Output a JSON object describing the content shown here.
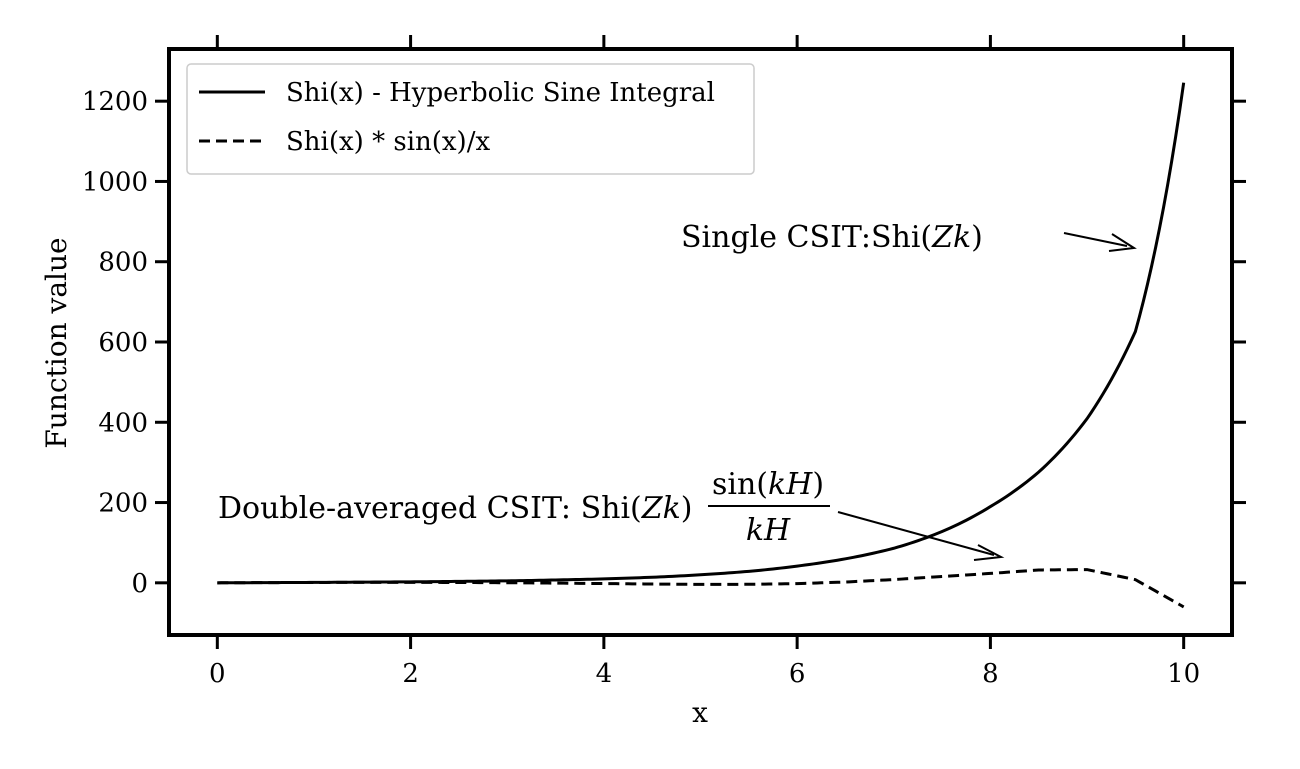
{
  "chart_data": {
    "type": "line",
    "title": "",
    "xlabel": "x",
    "ylabel": "Function value",
    "xlim": [
      -0.5,
      10.5
    ],
    "ylim": [
      -130,
      1330
    ],
    "xticks": [
      0,
      2,
      4,
      6,
      8,
      10
    ],
    "yticks": [
      0,
      200,
      400,
      600,
      800,
      1000,
      1200
    ],
    "grid": false,
    "legend_position": "top-left",
    "x": [
      0,
      0.5,
      1,
      1.5,
      2,
      2.5,
      3,
      3.5,
      4,
      4.5,
      5,
      5.5,
      6,
      6.5,
      7,
      7.5,
      8,
      8.5,
      9,
      9.5,
      10
    ],
    "series": [
      {
        "name": "Shi(x) - Hyperbolic Sine Integral",
        "style": "solid",
        "color": "#000000",
        "values": [
          0,
          0.507,
          1.057,
          1.727,
          2.502,
          3.61,
          4.97,
          7.1,
          9.81,
          13.9,
          20.1,
          28.6,
          41.7,
          59.8,
          86.1,
          128,
          190,
          276,
          409,
          626,
          1246
        ]
      },
      {
        "name": "Shi(x) * sin(x)/x",
        "style": "dashed",
        "color": "#000000",
        "values": [
          0,
          0.49,
          0.89,
          1.15,
          1.14,
          0.86,
          0.23,
          -0.71,
          -1.86,
          -3.0,
          -3.85,
          -3.7,
          -1.94,
          1.98,
          8.1,
          15.8,
          23.4,
          32.0,
          33.0,
          8.0,
          -60
        ]
      }
    ],
    "annotations": [
      {
        "text_prefix": "Single CSIT:Shi(",
        "text_math": "Zk",
        "text_suffix": ")",
        "arrow_to": [
          9.5,
          822
        ]
      },
      {
        "text_prefix": "Double-averaged CSIT: Shi(",
        "text_math": "Zk",
        "text_mid": ")",
        "frac_num_prefix": "sin(",
        "frac_num_math": "kH",
        "frac_num_suffix": ")",
        "frac_den": "kH",
        "arrow_to": [
          8.1,
          63
        ]
      }
    ]
  }
}
